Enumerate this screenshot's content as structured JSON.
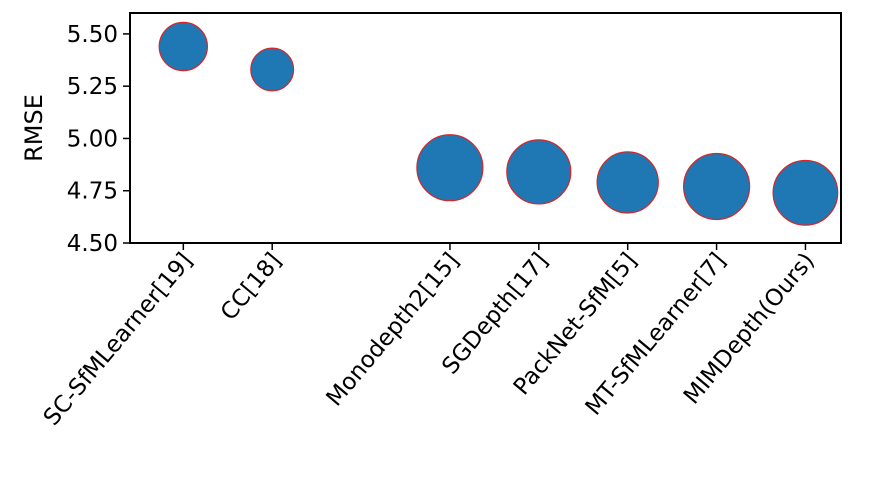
{
  "chart_data": {
    "type": "scatter",
    "title": "",
    "xlabel": "",
    "ylabel": "RMSE",
    "ylim": [
      4.5,
      5.6
    ],
    "yticks": [
      "4.50",
      "4.75",
      "5.00",
      "5.25",
      "5.50"
    ],
    "grid": false,
    "categories": [
      "SC-SfMLearner[19]",
      "CC[18]",
      "Monodepth2[15]",
      "SGDepth[17]",
      "PackNet-SfM[5]",
      "MT-SfMLearner[7]",
      "MIMDepth(Ours)"
    ],
    "x": [
      0,
      1,
      3,
      4,
      5,
      6,
      7
    ],
    "values": [
      5.44,
      5.33,
      4.86,
      4.84,
      4.79,
      4.77,
      4.74
    ],
    "relative_size": [
      0.71,
      0.63,
      0.97,
      0.94,
      0.9,
      0.97,
      0.95
    ],
    "marker_color": "#1f77b4",
    "marker_edge_color": "#d62728"
  }
}
